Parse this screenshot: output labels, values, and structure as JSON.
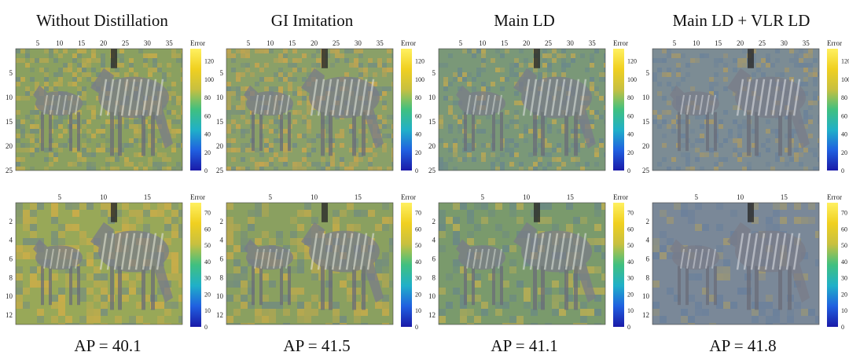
{
  "columns": [
    {
      "title": "Without Distillation",
      "ap": "AP = 40.1"
    },
    {
      "title": "GI Imitation",
      "ap": "AP = 41.5"
    },
    {
      "title": "Main LD",
      "ap": "AP = 41.1"
    },
    {
      "title": "Main LD + VLR LD",
      "ap": "AP = 41.8"
    }
  ],
  "rows": [
    {
      "x_ticks": [
        "5",
        "10",
        "15",
        "20",
        "25",
        "30",
        "35"
      ],
      "y_ticks": [
        "5",
        "10",
        "15",
        "20",
        "25"
      ],
      "colorbar": {
        "label": "Error",
        "ticks": [
          "0",
          "20",
          "40",
          "60",
          "80",
          "100",
          "120"
        ]
      }
    },
    {
      "x_ticks": [
        "5",
        "10",
        "15"
      ],
      "y_ticks": [
        "2",
        "4",
        "6",
        "8",
        "10",
        "12"
      ],
      "colorbar": {
        "label": "Error",
        "ticks": [
          "0",
          "10",
          "20",
          "30",
          "40",
          "50",
          "60",
          "70"
        ]
      }
    }
  ],
  "colormap": [
    "#1a1aa8",
    "#2060e0",
    "#20b0c8",
    "#40c080",
    "#c8c040",
    "#f0d020",
    "#fff060"
  ],
  "panel_tints": [
    {
      "row": 0,
      "col": 0,
      "tint": "#8aa060",
      "hot": "#e0b040",
      "level": 0.55
    },
    {
      "row": 0,
      "col": 1,
      "tint": "#8aa068",
      "hot": "#e8a840",
      "level": 0.6
    },
    {
      "row": 0,
      "col": 2,
      "tint": "#7a9878",
      "hot": "#e0b040",
      "level": 0.35
    },
    {
      "row": 0,
      "col": 3,
      "tint": "#7c8c94",
      "hot": "#c0a050",
      "level": 0.25
    },
    {
      "row": 1,
      "col": 0,
      "tint": "#98a858",
      "hot": "#e8b040",
      "level": 0.65
    },
    {
      "row": 1,
      "col": 1,
      "tint": "#8aa060",
      "hot": "#e0b040",
      "level": 0.55
    },
    {
      "row": 1,
      "col": 2,
      "tint": "#7a9a6c",
      "hot": "#d8b848",
      "level": 0.4
    },
    {
      "row": 1,
      "col": 3,
      "tint": "#7a8898",
      "hot": "#b0a060",
      "level": 0.25
    }
  ]
}
